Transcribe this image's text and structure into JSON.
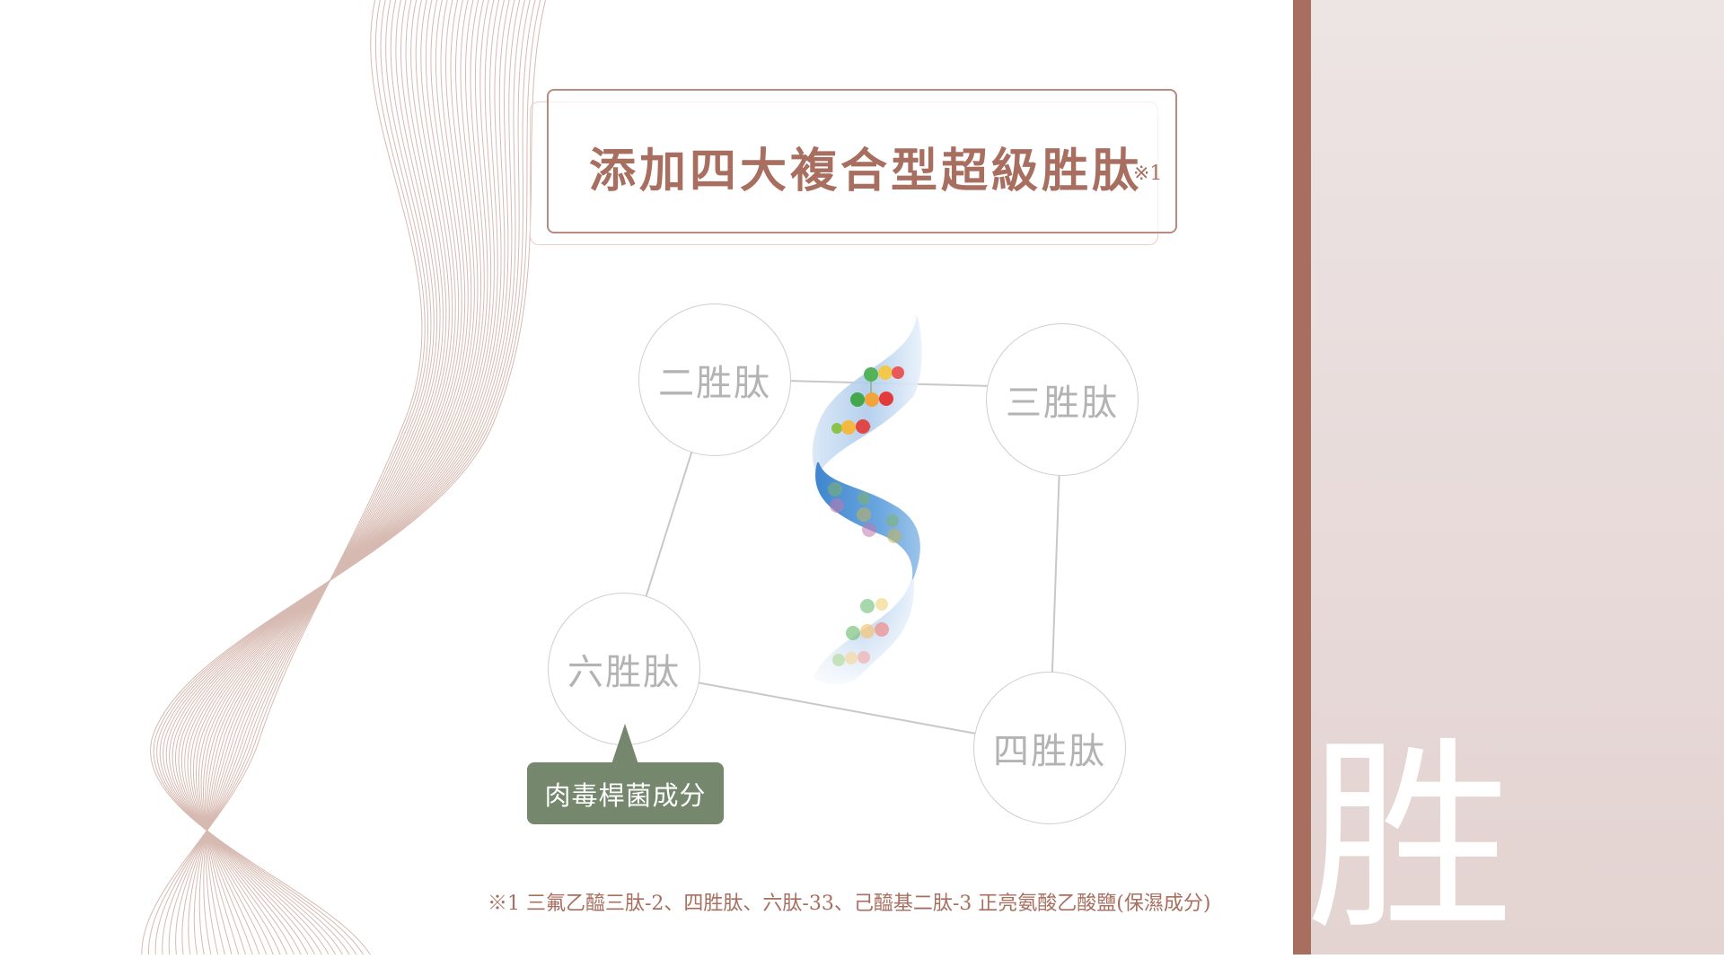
{
  "title": {
    "main": "添加四大複合型超級胜肽",
    "superscript": "※1"
  },
  "nodes": {
    "di": "二胜肽",
    "tri": "三胜肽",
    "hexa": "六胜肽",
    "tetra": "四胜肽"
  },
  "badge": {
    "label": "肉毒桿菌成分"
  },
  "footnote": "※1 三氟乙醯三肽-2、四胜肽、六肽-33、己醯基二肽-3 正亮氨酸乙酸鹽(保濕成分)",
  "side": {
    "glyph": "胜"
  },
  "colors": {
    "accent": "#a86e5f",
    "badge": "#75876d",
    "panel": "#e8dcdb",
    "node_text": "#b3b3b3"
  },
  "icons": {
    "helix": "dna-helix-icon"
  }
}
